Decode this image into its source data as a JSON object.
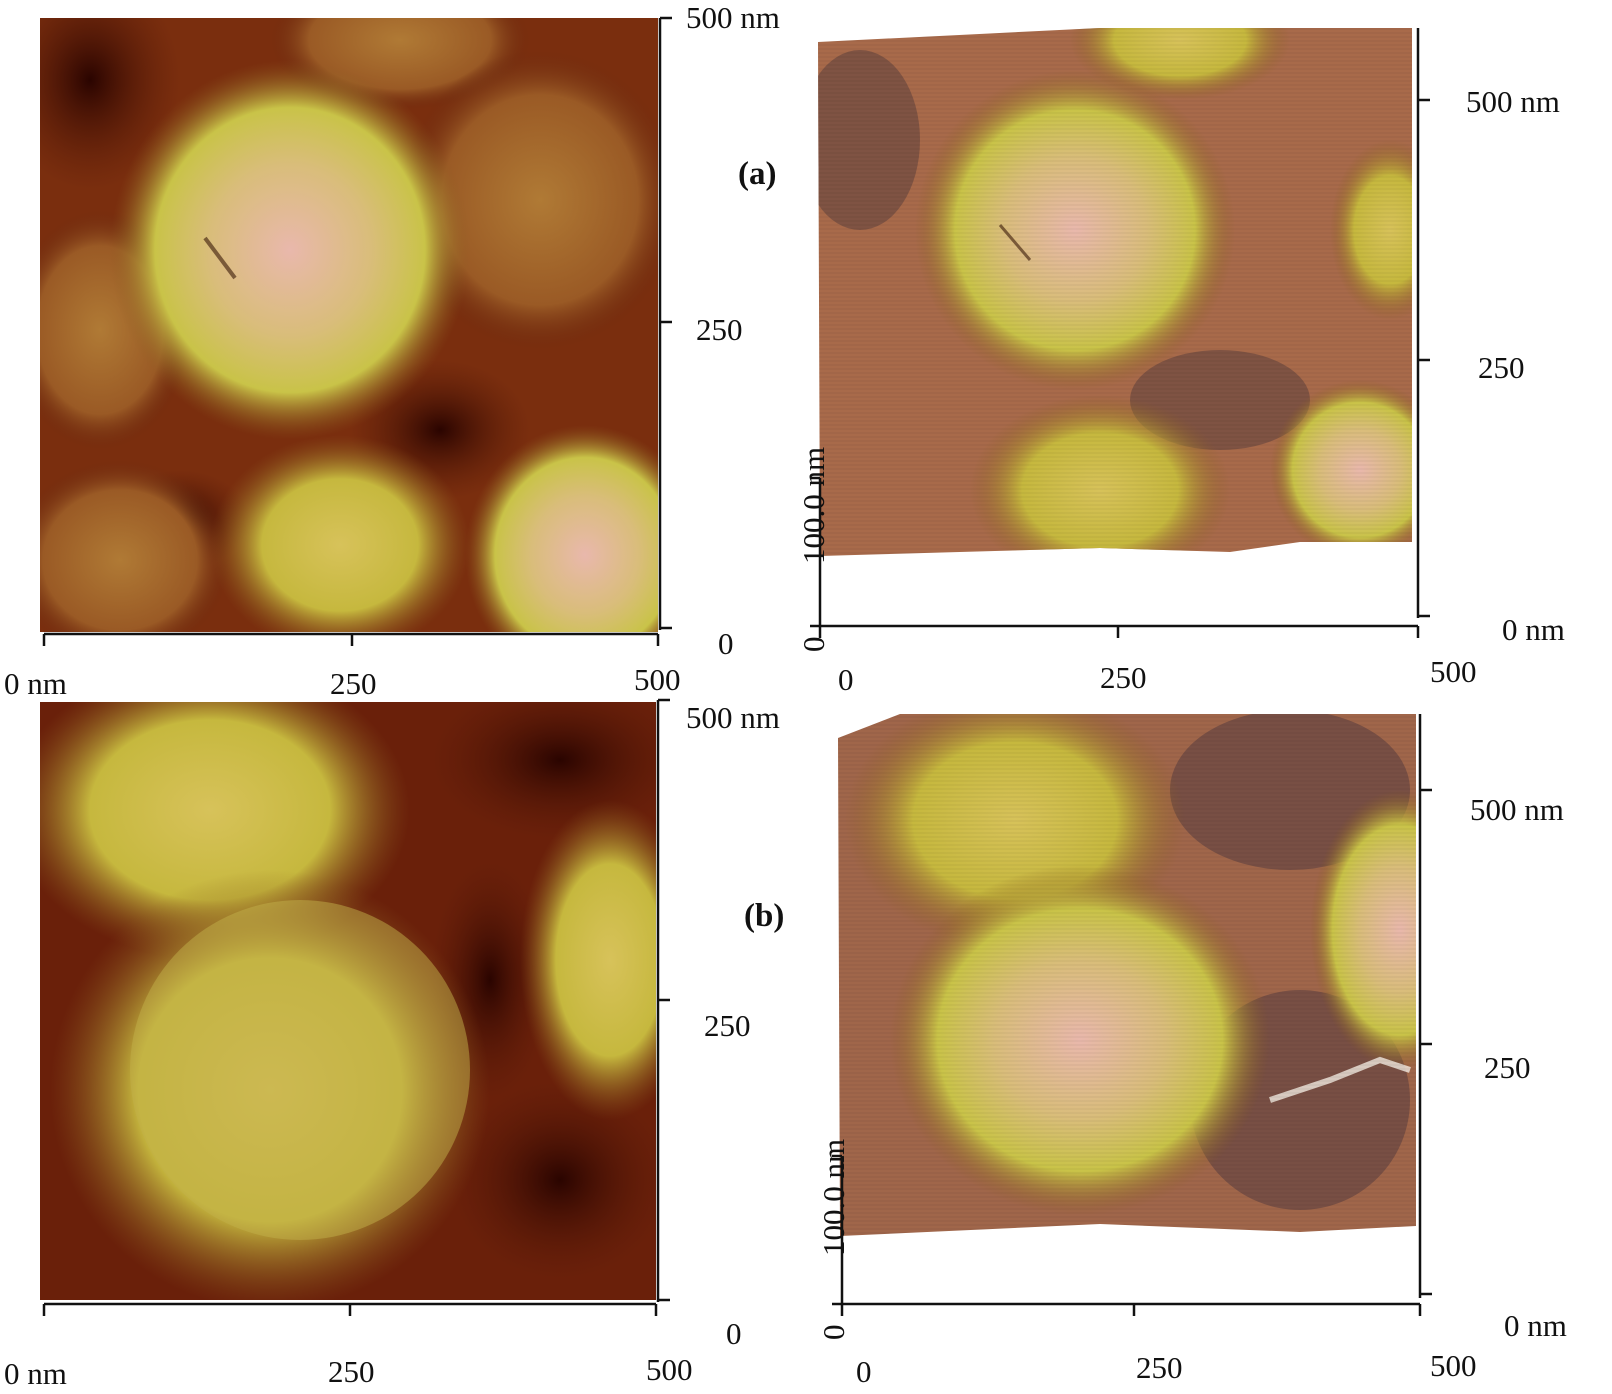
{
  "panels": [
    {
      "label": "(a)",
      "left_image": {
        "x_ticks": [
          "0 nm",
          "250",
          "500"
        ],
        "y_ticks": [
          "0",
          "250",
          "500 nm"
        ]
      },
      "right_image": {
        "x_ticks": [
          "0",
          "250",
          "500"
        ],
        "y_ticks": [
          "0 nm",
          "250",
          "500 nm"
        ],
        "z_ticks": [
          "0",
          "100.0 nm"
        ]
      }
    },
    {
      "label": "(b)",
      "left_image": {
        "x_ticks": [
          "0 nm",
          "250",
          "500"
        ],
        "y_ticks": [
          "0",
          "250",
          "500 nm"
        ]
      },
      "right_image": {
        "x_ticks": [
          "0",
          "250",
          "500"
        ],
        "y_ticks": [
          "0 nm",
          "250",
          "500 nm"
        ],
        "z_ticks": [
          "0",
          "100.0 nm"
        ]
      }
    }
  ],
  "colors": {
    "dark": "#4a0f05",
    "mid": "#8a3a12",
    "bright": "#d8d050",
    "highlight": "#e8b8a8"
  }
}
